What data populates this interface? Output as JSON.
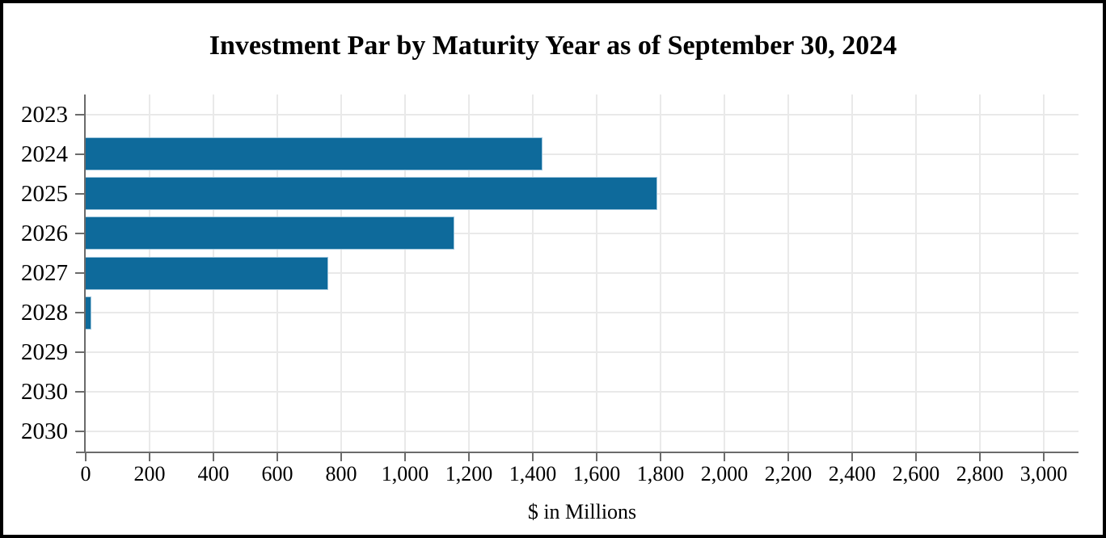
{
  "chart_data": {
    "type": "bar",
    "orientation": "horizontal",
    "title": "Investment Par by Maturity Year as of September 30, 2024",
    "xlabel": "$ in Millions",
    "ylabel": "",
    "categories": [
      "2023",
      "2024",
      "2025",
      "2026",
      "2027",
      "2028",
      "2029",
      "2030",
      "2030"
    ],
    "values": [
      0,
      1430,
      1790,
      1155,
      760,
      17,
      0,
      0,
      0
    ],
    "x_ticks": [
      {
        "value": 0,
        "label": "0"
      },
      {
        "value": 200,
        "label": "200"
      },
      {
        "value": 400,
        "label": "400"
      },
      {
        "value": 600,
        "label": "600"
      },
      {
        "value": 800,
        "label": "800"
      },
      {
        "value": 1000,
        "label": "1,000"
      },
      {
        "value": 1200,
        "label": "1,200"
      },
      {
        "value": 1400,
        "label": "1,400"
      },
      {
        "value": 1600,
        "label": "1,600"
      },
      {
        "value": 1800,
        "label": "1,800"
      },
      {
        "value": 2000,
        "label": "2,000"
      },
      {
        "value": 2200,
        "label": "2,200"
      },
      {
        "value": 2400,
        "label": "2,400"
      },
      {
        "value": 2600,
        "label": "2,600"
      },
      {
        "value": 2800,
        "label": "2,800"
      },
      {
        "value": 3000,
        "label": "3,000"
      }
    ],
    "xlim": [
      0,
      3110
    ],
    "grid": true,
    "legend": "none",
    "colors": {
      "bar_fill": "#0e6a9b",
      "bar_edge": "#9fc6dd",
      "axis": "#6b6b6b",
      "gridline": "#e9e9e9",
      "text": "#000000",
      "frame_border": "#000000",
      "background": "#ffffff"
    }
  }
}
